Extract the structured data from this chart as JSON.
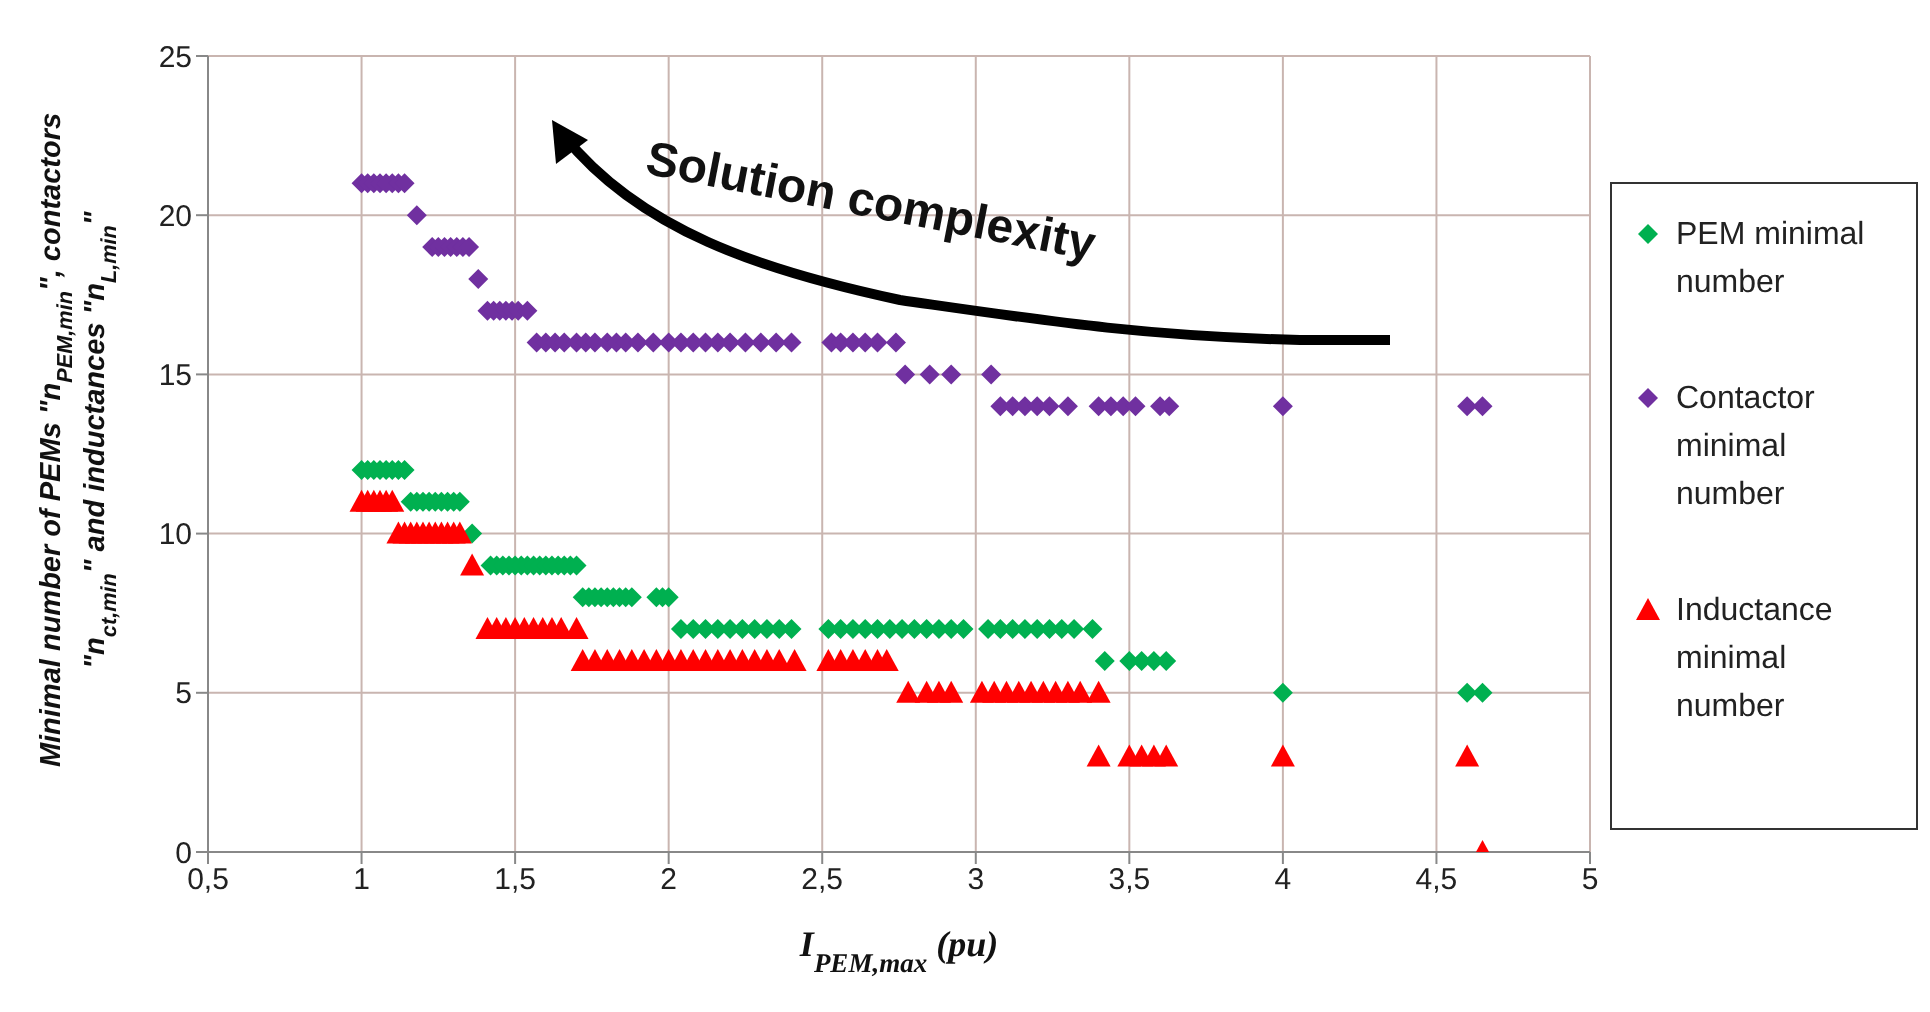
{
  "chart_data": {
    "type": "scatter",
    "xlabel": "I$_{PEM,max}$ (pu)",
    "ylabel": "Minimal number of PEMs \"n$_{PEM,min}$\", contactors \"n$_{ct,min}$\" and inductances \"n$_{L,min}$\"",
    "annotations": [
      "Solution complexity"
    ],
    "xlim": [
      0.5,
      5
    ],
    "xticks": [
      {
        "value": 0.5,
        "label": "0,5"
      },
      1,
      {
        "value": 1.5,
        "label": "1,5"
      },
      2,
      {
        "value": 2.5,
        "label": "2,5"
      },
      3,
      {
        "value": 3.5,
        "label": "3,5"
      },
      4,
      {
        "value": 4.5,
        "label": "4,5"
      },
      5
    ],
    "ylim": [
      0,
      25
    ],
    "yticks": [
      0,
      5,
      10,
      15,
      20,
      25
    ],
    "grid": true,
    "legend": "right",
    "series": [
      {
        "name": "PEM minimal number",
        "color": "#00b050",
        "marker": "diamond",
        "x": [
          1.0,
          1.02,
          1.04,
          1.06,
          1.08,
          1.1,
          1.12,
          1.14,
          1.16,
          1.18,
          1.2,
          1.22,
          1.24,
          1.26,
          1.28,
          1.3,
          1.32,
          1.36,
          1.42,
          1.44,
          1.46,
          1.48,
          1.5,
          1.52,
          1.54,
          1.56,
          1.58,
          1.6,
          1.62,
          1.64,
          1.66,
          1.68,
          1.7,
          1.72,
          1.74,
          1.76,
          1.78,
          1.8,
          1.82,
          1.84,
          1.86,
          1.88,
          1.96,
          1.98,
          2.0,
          2.04,
          2.08,
          2.12,
          2.16,
          2.2,
          2.24,
          2.28,
          2.32,
          2.36,
          2.4,
          2.52,
          2.56,
          2.6,
          2.64,
          2.68,
          2.72,
          2.76,
          2.8,
          2.84,
          2.88,
          2.92,
          2.96,
          3.04,
          3.08,
          3.12,
          3.16,
          3.2,
          3.24,
          3.28,
          3.32,
          3.38,
          3.42,
          3.5,
          3.54,
          3.58,
          3.62,
          4.0,
          4.6,
          4.65
        ],
        "values": [
          12,
          12,
          12,
          12,
          12,
          12,
          12,
          12,
          11,
          11,
          11,
          11,
          11,
          11,
          11,
          11,
          11,
          10,
          9,
          9,
          9,
          9,
          9,
          9,
          9,
          9,
          9,
          9,
          9,
          9,
          9,
          9,
          9,
          8,
          8,
          8,
          8,
          8,
          8,
          8,
          8,
          8,
          8,
          8,
          8,
          7,
          7,
          7,
          7,
          7,
          7,
          7,
          7,
          7,
          7,
          7,
          7,
          7,
          7,
          7,
          7,
          7,
          7,
          7,
          7,
          7,
          7,
          7,
          7,
          7,
          7,
          7,
          7,
          7,
          7,
          7,
          6,
          6,
          6,
          6,
          6,
          5,
          5,
          5
        ]
      },
      {
        "name": "Contactor minimal number",
        "color": "#7030a0",
        "marker": "diamond",
        "x": [
          1.0,
          1.02,
          1.04,
          1.06,
          1.08,
          1.1,
          1.12,
          1.14,
          1.18,
          1.23,
          1.25,
          1.27,
          1.29,
          1.31,
          1.33,
          1.35,
          1.38,
          1.41,
          1.43,
          1.45,
          1.47,
          1.49,
          1.51,
          1.54,
          1.57,
          1.6,
          1.63,
          1.66,
          1.7,
          1.73,
          1.76,
          1.8,
          1.83,
          1.86,
          1.9,
          1.95,
          2.0,
          2.04,
          2.08,
          2.12,
          2.16,
          2.2,
          2.25,
          2.3,
          2.35,
          2.4,
          2.53,
          2.56,
          2.6,
          2.64,
          2.68,
          2.74,
          2.77,
          2.85,
          2.92,
          3.05,
          3.08,
          3.12,
          3.16,
          3.2,
          3.24,
          3.3,
          3.4,
          3.44,
          3.48,
          3.52,
          3.6,
          3.63,
          4.0,
          4.6,
          4.65
        ],
        "values": [
          21,
          21,
          21,
          21,
          21,
          21,
          21,
          21,
          20,
          19,
          19,
          19,
          19,
          19,
          19,
          19,
          18,
          17,
          17,
          17,
          17,
          17,
          17,
          17,
          16,
          16,
          16,
          16,
          16,
          16,
          16,
          16,
          16,
          16,
          16,
          16,
          16,
          16,
          16,
          16,
          16,
          16,
          16,
          16,
          16,
          16,
          16,
          16,
          16,
          16,
          16,
          16,
          15,
          15,
          15,
          15,
          14,
          14,
          14,
          14,
          14,
          14,
          14,
          14,
          14,
          14,
          14,
          14,
          14,
          14,
          14
        ]
      },
      {
        "name": "Inductance minimal number",
        "color": "#ff0000",
        "marker": "triangle",
        "x": [
          1.0,
          1.02,
          1.04,
          1.06,
          1.08,
          1.1,
          1.12,
          1.14,
          1.16,
          1.18,
          1.2,
          1.22,
          1.24,
          1.26,
          1.28,
          1.3,
          1.32,
          1.36,
          1.41,
          1.44,
          1.47,
          1.5,
          1.53,
          1.56,
          1.59,
          1.62,
          1.65,
          1.7,
          1.72,
          1.76,
          1.8,
          1.84,
          1.88,
          1.92,
          1.96,
          2.0,
          2.04,
          2.08,
          2.12,
          2.16,
          2.2,
          2.24,
          2.28,
          2.32,
          2.36,
          2.41,
          2.52,
          2.56,
          2.6,
          2.64,
          2.68,
          2.71,
          2.78,
          2.84,
          2.88,
          2.92,
          3.02,
          3.06,
          3.1,
          3.14,
          3.18,
          3.22,
          3.26,
          3.3,
          3.34,
          3.4,
          3.4,
          3.5,
          3.54,
          3.58,
          3.62,
          4.0,
          4.6,
          4.65
        ],
        "values": [
          11,
          11,
          11,
          11,
          11,
          11,
          10,
          10,
          10,
          10,
          10,
          10,
          10,
          10,
          10,
          10,
          10,
          9,
          7,
          7,
          7,
          7,
          7,
          7,
          7,
          7,
          7,
          7,
          6,
          6,
          6,
          6,
          6,
          6,
          6,
          6,
          6,
          6,
          6,
          6,
          6,
          6,
          6,
          6,
          6,
          6,
          6,
          6,
          6,
          6,
          6,
          6,
          5,
          5,
          5,
          5,
          5,
          5,
          5,
          5,
          5,
          5,
          5,
          5,
          5,
          5,
          3,
          3,
          3,
          3,
          3,
          3,
          3,
          0
        ]
      }
    ]
  }
}
